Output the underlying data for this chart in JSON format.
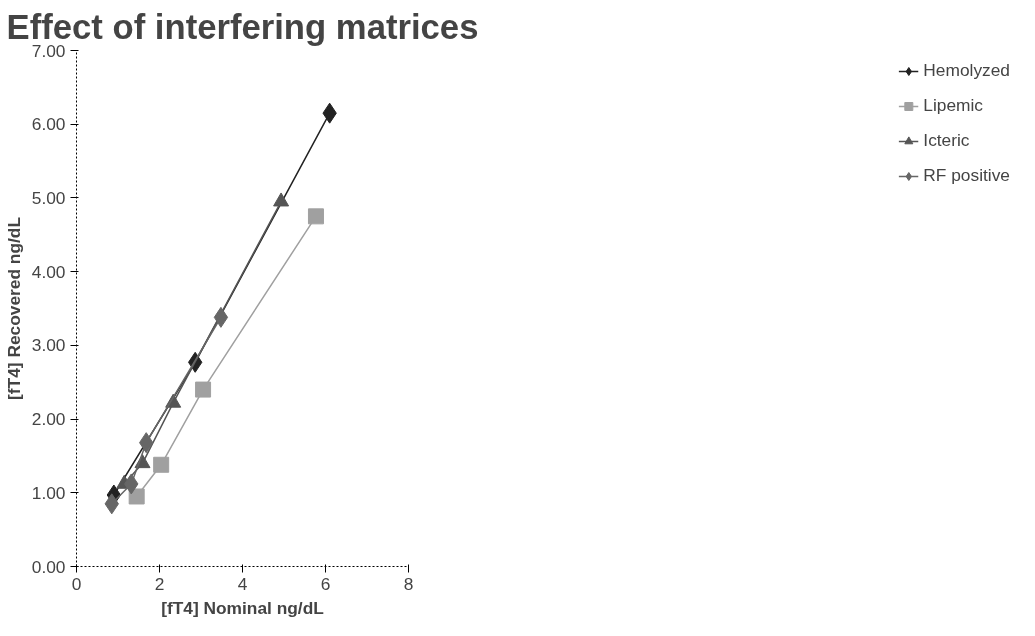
{
  "chart_data": {
    "type": "line",
    "title": "Effect of interfering matrices",
    "xlabel": "[fT4] Nominal ng/dL",
    "ylabel": "[fT4] Recovered ng/dL",
    "xlim": [
      0,
      8
    ],
    "xticks": [
      0,
      2,
      4,
      6,
      8
    ],
    "ylim": [
      0,
      7
    ],
    "yticks": [
      {
        "value": 0,
        "label": "0.00"
      },
      {
        "value": 1,
        "label": "1.00"
      },
      {
        "value": 2,
        "label": "2.00"
      },
      {
        "value": 3,
        "label": "3.00"
      },
      {
        "value": 4,
        "label": "4.00"
      },
      {
        "value": 5,
        "label": "5.00"
      },
      {
        "value": 6,
        "label": "6.00"
      },
      {
        "value": 7,
        "label": "7.00"
      }
    ],
    "grid": false,
    "legend": "right",
    "series": [
      {
        "name": "Hemolyzed",
        "color": "#222222",
        "marker": "diamond",
        "x": [
          0.9,
          2.86,
          6.1
        ],
        "values": [
          0.97,
          2.77,
          6.15
        ]
      },
      {
        "name": "Lipemic",
        "color": "#a0a0a0",
        "marker": "square",
        "x": [
          1.45,
          2.04,
          3.05,
          5.77
        ],
        "values": [
          0.95,
          1.38,
          2.4,
          4.75
        ]
      },
      {
        "name": "Icteric",
        "color": "#555555",
        "marker": "triangle",
        "x": [
          1.15,
          1.59,
          2.33,
          4.93
        ],
        "values": [
          1.12,
          1.4,
          2.22,
          4.95
        ]
      },
      {
        "name": "RF positive",
        "color": "#666666",
        "marker": "diamond",
        "x": [
          0.85,
          1.32,
          1.68,
          3.48
        ],
        "values": [
          0.85,
          1.12,
          1.68,
          3.38
        ]
      }
    ]
  }
}
